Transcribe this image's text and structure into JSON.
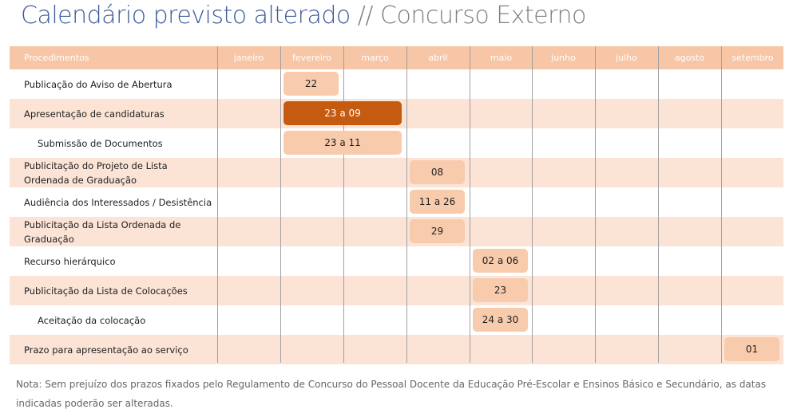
{
  "title": {
    "main": "Calendário previsto alterado",
    "sub": "// Concurso Externo"
  },
  "header": {
    "first": "Procedimentos",
    "months": [
      "janeiro",
      "fevereiro",
      "março",
      "abril",
      "maio",
      "junho",
      "julho",
      "agosto",
      "setembro"
    ]
  },
  "colors": {
    "header": "#f7c6a6",
    "stripe": "#fbe3d6",
    "bar": "#f8cbad",
    "bar_highlight": "#c55a11"
  },
  "rows": [
    {
      "label": "Publicação do Aviso de Abertura",
      "indent": false,
      "bar": {
        "text": "22",
        "start_month": "fevereiro",
        "end_month": "fevereiro",
        "highlight": false
      }
    },
    {
      "label": "Apresentação de candidaturas",
      "indent": false,
      "bar": {
        "text": "23 a 09",
        "start_month": "fevereiro",
        "end_month": "março",
        "highlight": true
      }
    },
    {
      "label": "Submissão de Documentos",
      "indent": true,
      "bar": {
        "text": "23 a 11",
        "start_month": "fevereiro",
        "end_month": "março",
        "highlight": false
      }
    },
    {
      "label": "Publicitação do Projeto de Lista Ordenada de Graduação",
      "indent": false,
      "bar": {
        "text": "08",
        "start_month": "abril",
        "end_month": "abril",
        "highlight": false
      }
    },
    {
      "label": "Audiência dos Interessados / Desistência",
      "indent": false,
      "bar": {
        "text": "11 a 26",
        "start_month": "abril",
        "end_month": "abril",
        "highlight": false
      }
    },
    {
      "label": "Publicitação da Lista Ordenada de Graduação",
      "indent": false,
      "bar": {
        "text": "29",
        "start_month": "abril",
        "end_month": "abril",
        "highlight": false
      }
    },
    {
      "label": "Recurso hierárquico",
      "indent": false,
      "bar": {
        "text": "02 a 06",
        "start_month": "maio",
        "end_month": "maio",
        "highlight": false
      }
    },
    {
      "label": "Publicitação da Lista de Colocações",
      "indent": false,
      "bar": {
        "text": "23",
        "start_month": "maio",
        "end_month": "maio",
        "highlight": false
      }
    },
    {
      "label": "Aceitação da colocação",
      "indent": true,
      "bar": {
        "text": "24 a 30",
        "start_month": "maio",
        "end_month": "maio",
        "highlight": false
      }
    },
    {
      "label": "Prazo para apresentação ao serviço",
      "indent": false,
      "bar": {
        "text": "01",
        "start_month": "setembro",
        "end_month": "setembro",
        "highlight": false
      }
    }
  ],
  "note": "Nota: Sem prejuízo dos prazos fixados pelo Regulamento de Concurso do Pessoal Docente da Educação Pré-Escolar e Ensinos Básico e Secundário, as datas indicadas poderão ser alteradas."
}
